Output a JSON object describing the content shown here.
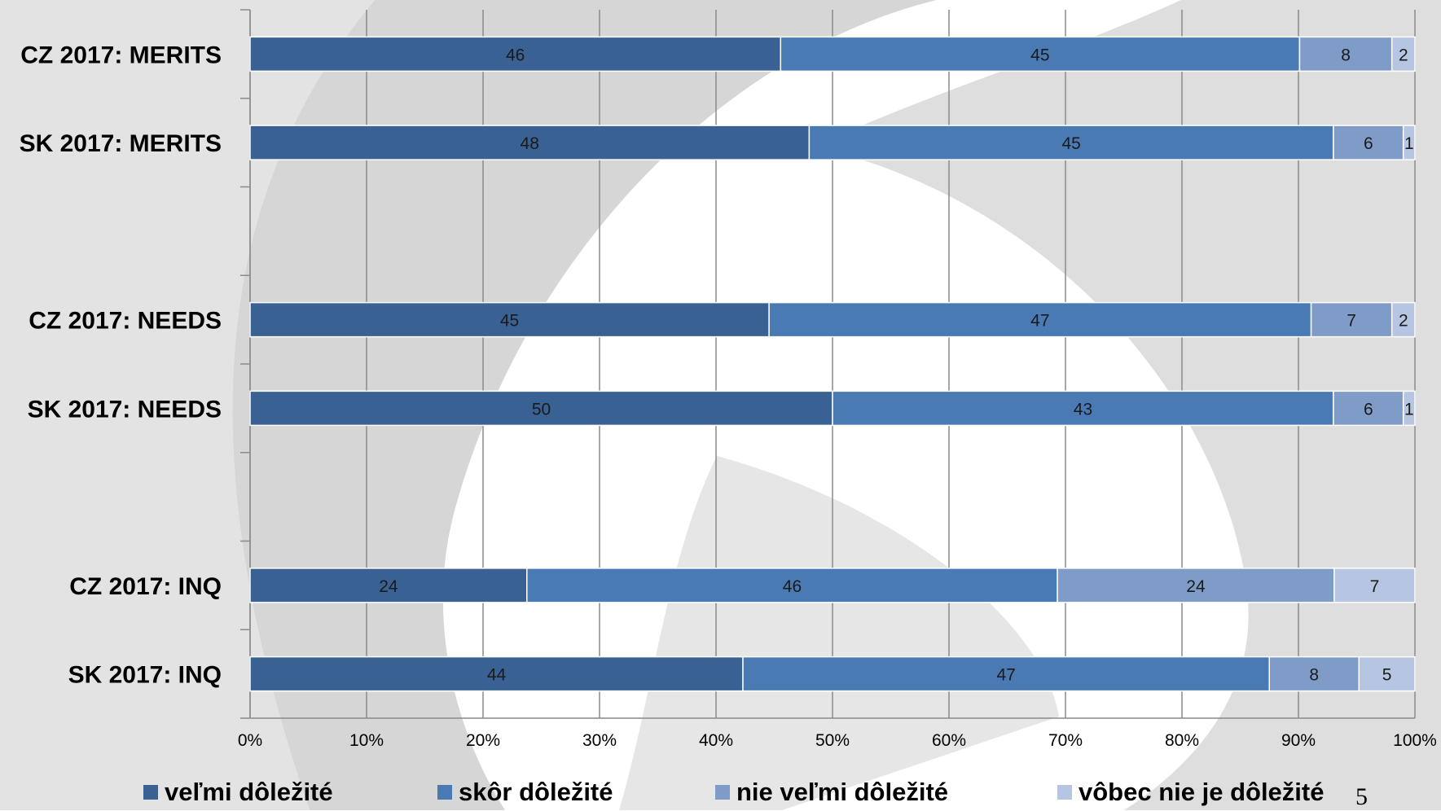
{
  "chart_data": {
    "type": "bar",
    "orientation": "horizontal",
    "stacked": "percent",
    "categories": [
      "CZ 2017: MERITS",
      "SK 2017: MERITS",
      "",
      "CZ 2017: NEEDS",
      "SK 2017: NEEDS",
      "",
      "CZ 2017: INQ",
      "SK 2017: INQ"
    ],
    "series": [
      {
        "name": "veľmi dôležité",
        "color": "#3a6193",
        "values": [
          46,
          48,
          null,
          45,
          50,
          null,
          24,
          44
        ]
      },
      {
        "name": "skôr dôležité",
        "color": "#4a7ab4",
        "values": [
          45,
          45,
          null,
          47,
          43,
          null,
          46,
          47
        ]
      },
      {
        "name": "nie veľmi dôležité",
        "color": "#7f9cc9",
        "values": [
          8,
          6,
          null,
          7,
          6,
          null,
          24,
          8
        ]
      },
      {
        "name": "vôbec nie je dôležité",
        "color": "#b6c6e2",
        "values": [
          2,
          1,
          null,
          2,
          1,
          null,
          7,
          5
        ]
      }
    ],
    "x_ticks": [
      "0%",
      "10%",
      "20%",
      "30%",
      "40%",
      "50%",
      "60%",
      "70%",
      "80%",
      "90%",
      "100%"
    ],
    "xlim": [
      0,
      100
    ],
    "grid": true,
    "legend_position": "bottom"
  },
  "page": {
    "number": "5"
  }
}
